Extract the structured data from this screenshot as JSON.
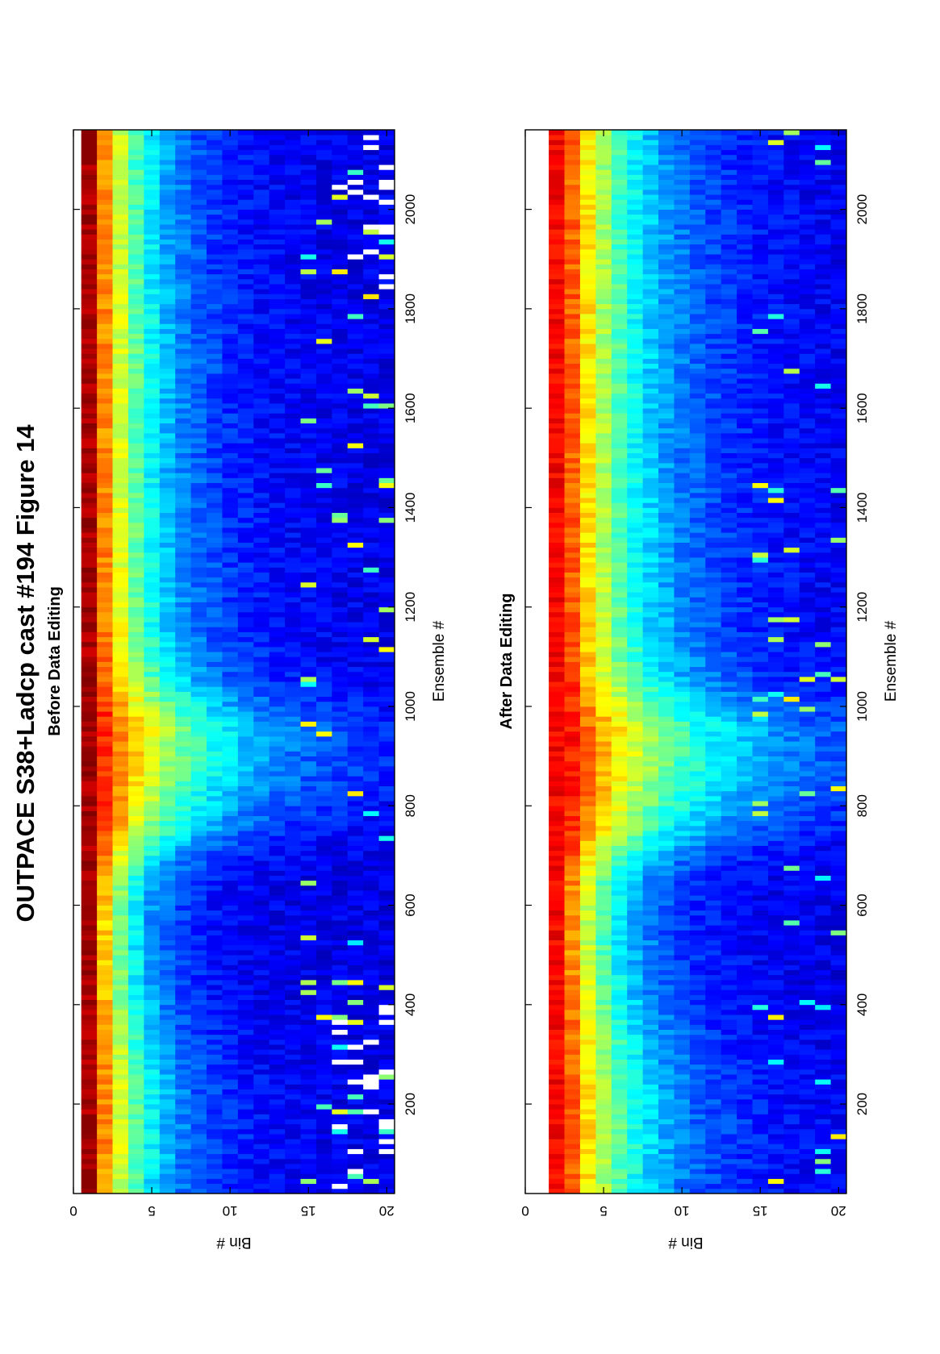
{
  "figure": {
    "title": "OUTPACE S38+Ladcp cast #194  Figure 14"
  },
  "chart_data": [
    {
      "type": "heatmap",
      "title": "Before Data Editing",
      "xlabel": "Ensemble #",
      "ylabel": "Bin #",
      "xlim": [
        20,
        2160
      ],
      "ylim": [
        0,
        20.5
      ],
      "xticks": [
        200,
        400,
        600,
        800,
        1000,
        1200,
        1400,
        1600,
        1800,
        2000
      ],
      "yticks": [
        0,
        5,
        10,
        15,
        20
      ],
      "colormap": "jet",
      "bins": [
        1,
        20
      ],
      "first_bin_value": 0.96,
      "decay_profile": [
        {
          "ensemble": 20,
          "scale": 3.2
        },
        {
          "ensemble": 120,
          "scale": 3.6
        },
        {
          "ensemble": 260,
          "scale": 3.4
        },
        {
          "ensemble": 420,
          "scale": 2.7
        },
        {
          "ensemble": 560,
          "scale": 2.5
        },
        {
          "ensemble": 650,
          "scale": 2.8
        },
        {
          "ensemble": 700,
          "scale": 3.8
        },
        {
          "ensemble": 760,
          "scale": 5.5
        },
        {
          "ensemble": 850,
          "scale": 7.0
        },
        {
          "ensemble": 950,
          "scale": 7.5
        },
        {
          "ensemble": 1000,
          "scale": 6.0
        },
        {
          "ensemble": 1060,
          "scale": 4.5
        },
        {
          "ensemble": 1150,
          "scale": 3.8
        },
        {
          "ensemble": 1300,
          "scale": 3.7
        },
        {
          "ensemble": 1500,
          "scale": 3.5
        },
        {
          "ensemble": 1700,
          "scale": 3.6
        },
        {
          "ensemble": 1900,
          "scale": 3.4
        },
        {
          "ensemble": 2160,
          "scale": 3.3
        }
      ],
      "high_first_bin_spans": [
        [
          30,
          60
        ],
        [
          140,
          170
        ],
        [
          2090,
          2160
        ]
      ],
      "missing_data_regions": [
        [
          20,
          180,
          17,
          20
        ],
        [
          220,
          420,
          17,
          20
        ],
        [
          1800,
          2160,
          17,
          20
        ]
      ]
    },
    {
      "type": "heatmap",
      "title": "After Data Editing",
      "xlabel": "Ensemble #",
      "ylabel": "Bin #",
      "xlim": [
        20,
        2160
      ],
      "ylim": [
        0,
        20.5
      ],
      "xticks": [
        200,
        400,
        600,
        800,
        1000,
        1200,
        1400,
        1600,
        1800,
        2000
      ],
      "yticks": [
        0,
        5,
        10,
        15,
        20
      ],
      "colormap": "jet",
      "bins": [
        2,
        20
      ],
      "first_bin_value": 0.88,
      "decay_profile": [
        {
          "ensemble": 20,
          "scale": 4.5
        },
        {
          "ensemble": 120,
          "scale": 4.8
        },
        {
          "ensemble": 260,
          "scale": 4.6
        },
        {
          "ensemble": 420,
          "scale": 3.6
        },
        {
          "ensemble": 560,
          "scale": 3.3
        },
        {
          "ensemble": 650,
          "scale": 3.6
        },
        {
          "ensemble": 700,
          "scale": 4.8
        },
        {
          "ensemble": 760,
          "scale": 6.8
        },
        {
          "ensemble": 850,
          "scale": 8.5
        },
        {
          "ensemble": 950,
          "scale": 8.8
        },
        {
          "ensemble": 1000,
          "scale": 7.0
        },
        {
          "ensemble": 1060,
          "scale": 5.5
        },
        {
          "ensemble": 1150,
          "scale": 4.8
        },
        {
          "ensemble": 1300,
          "scale": 4.7
        },
        {
          "ensemble": 1500,
          "scale": 4.5
        },
        {
          "ensemble": 1700,
          "scale": 4.6
        },
        {
          "ensemble": 1900,
          "scale": 4.5
        },
        {
          "ensemble": 2160,
          "scale": 4.3
        }
      ],
      "missing_data_regions": []
    }
  ]
}
